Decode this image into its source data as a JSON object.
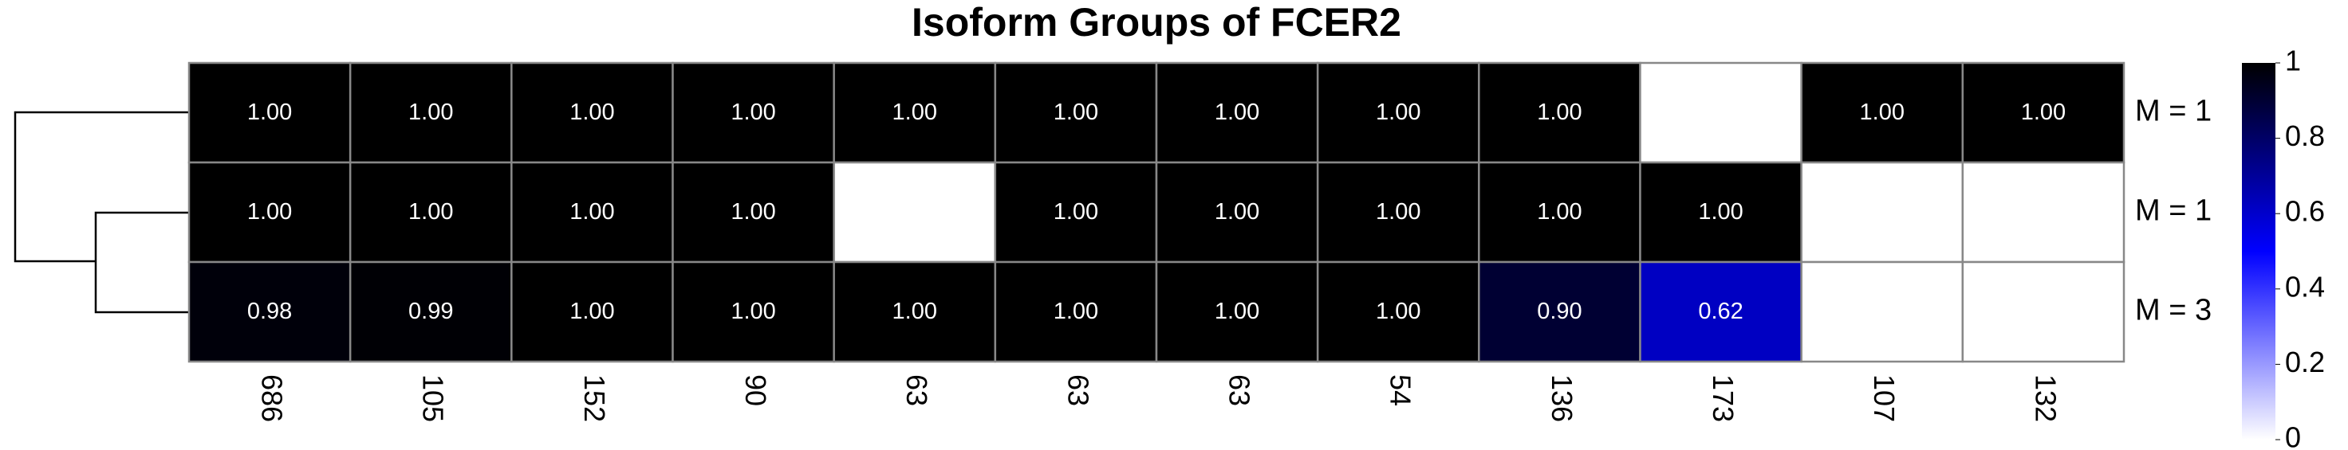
{
  "chart_data": {
    "type": "heatmap",
    "title": "Isoform Groups of FCER2",
    "rows": [
      "M = 1",
      "M = 1",
      "M = 3"
    ],
    "categories": [
      "686",
      "105",
      "152",
      "90",
      "63",
      "63",
      "63",
      "54",
      "136",
      "173",
      "107",
      "132"
    ],
    "values": [
      [
        1,
        1,
        1,
        1,
        1,
        1,
        1,
        1,
        1,
        null,
        1,
        1
      ],
      [
        1,
        1,
        1,
        1,
        null,
        1,
        1,
        1,
        1,
        1,
        null,
        null
      ],
      [
        0.98,
        0.99,
        1,
        1,
        1,
        1,
        1,
        1,
        0.9,
        0.62,
        null,
        null
      ]
    ],
    "value_labels": [
      [
        "1.00",
        "1.00",
        "1.00",
        "1.00",
        "1.00",
        "1.00",
        "1.00",
        "1.00",
        "1.00",
        null,
        "1.00",
        "1.00"
      ],
      [
        "1.00",
        "1.00",
        "1.00",
        "1.00",
        null,
        "1.00",
        "1.00",
        "1.00",
        "1.00",
        "1.00",
        null,
        null
      ],
      [
        "0.98",
        "0.99",
        "1.00",
        "1.00",
        "1.00",
        "1.00",
        "1.00",
        "1.00",
        "0.90",
        "0.62",
        null,
        null
      ]
    ],
    "colors": [
      "#ffffff",
      "#0000ff",
      "#000000"
    ],
    "zlim": [
      0,
      1
    ],
    "zticks": [
      0,
      0.2,
      0.4,
      0.6,
      0.8,
      1
    ]
  }
}
